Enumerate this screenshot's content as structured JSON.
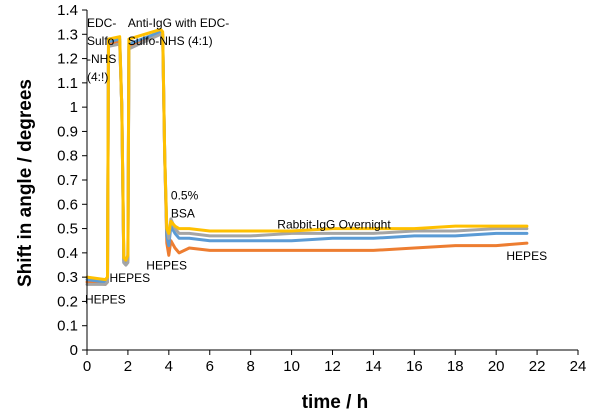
{
  "chart_data": {
    "type": "line",
    "title": "",
    "xlabel": "time / h",
    "ylabel": "Shift in angle / degrees",
    "xlim": [
      0,
      24
    ],
    "ylim": [
      0,
      1.4
    ],
    "xticks": [
      "0",
      "2",
      "4",
      "6",
      "8",
      "10",
      "12",
      "14",
      "16",
      "18",
      "20",
      "22",
      "24"
    ],
    "yticks": [
      "0",
      "0.1",
      "0.2",
      "0.3",
      "0.4",
      "0.5",
      "0.6",
      "0.7",
      "0.8",
      "0.9",
      "1",
      "1.1",
      "1.2",
      "1.3",
      "1.4"
    ],
    "grid": false,
    "legend": "none",
    "series": [
      {
        "color": "#ED7D31",
        "x": [
          0,
          0.9,
          1.0,
          1.05,
          1.6,
          1.7,
          1.8,
          1.9,
          2.0,
          2.05,
          3.6,
          3.7,
          3.8,
          3.9,
          4.0,
          4.1,
          4.3,
          4.5,
          5,
          6,
          8,
          10,
          12,
          14,
          16,
          18,
          20,
          21.5
        ],
        "y": [
          0.28,
          0.27,
          0.28,
          1.26,
          1.27,
          1.0,
          0.37,
          0.36,
          0.38,
          1.25,
          1.31,
          1.3,
          0.8,
          0.44,
          0.39,
          0.45,
          0.42,
          0.4,
          0.42,
          0.41,
          0.41,
          0.41,
          0.41,
          0.41,
          0.42,
          0.43,
          0.43,
          0.44
        ]
      },
      {
        "color": "#5B9BD5",
        "x": [
          0,
          0.9,
          1.0,
          1.05,
          1.6,
          1.7,
          1.8,
          1.9,
          2.0,
          2.05,
          3.6,
          3.7,
          3.8,
          3.9,
          4.0,
          4.1,
          4.3,
          4.5,
          5,
          6,
          8,
          10,
          12,
          14,
          16,
          18,
          20,
          21.5
        ],
        "y": [
          0.29,
          0.28,
          0.29,
          1.27,
          1.28,
          1.0,
          0.36,
          0.35,
          0.37,
          1.26,
          1.31,
          1.3,
          0.8,
          0.47,
          0.43,
          0.51,
          0.48,
          0.46,
          0.46,
          0.45,
          0.45,
          0.45,
          0.46,
          0.46,
          0.47,
          0.47,
          0.48,
          0.48
        ]
      },
      {
        "color": "#A5A5A5",
        "x": [
          0,
          0.9,
          1.0,
          1.05,
          1.6,
          1.7,
          1.8,
          1.9,
          2.0,
          2.05,
          3.6,
          3.7,
          3.8,
          3.9,
          4.0,
          4.1,
          4.3,
          4.5,
          5,
          6,
          8,
          10,
          12,
          14,
          16,
          18,
          20,
          21.5
        ],
        "y": [
          0.27,
          0.27,
          0.28,
          1.25,
          1.26,
          1.0,
          0.36,
          0.35,
          0.36,
          1.24,
          1.3,
          1.29,
          0.8,
          0.5,
          0.46,
          0.54,
          0.5,
          0.48,
          0.48,
          0.47,
          0.47,
          0.48,
          0.48,
          0.48,
          0.49,
          0.49,
          0.5,
          0.5
        ]
      },
      {
        "color": "#FFC000",
        "x": [
          0,
          0.9,
          1.0,
          1.05,
          1.6,
          1.7,
          1.8,
          1.9,
          2.0,
          2.05,
          3.6,
          3.7,
          3.8,
          3.9,
          4.0,
          4.1,
          4.3,
          4.5,
          5,
          6,
          8,
          10,
          12,
          14,
          16,
          18,
          20,
          21.5
        ],
        "y": [
          0.3,
          0.29,
          0.3,
          1.28,
          1.29,
          1.0,
          0.38,
          0.37,
          0.39,
          1.28,
          1.32,
          1.31,
          0.8,
          0.5,
          0.48,
          0.53,
          0.51,
          0.5,
          0.5,
          0.49,
          0.49,
          0.49,
          0.5,
          0.5,
          0.5,
          0.51,
          0.51,
          0.51
        ]
      }
    ],
    "annotations": [
      {
        "lines": [
          "EDC-",
          "Sulfo",
          "-NHS",
          "(4:!)"
        ],
        "x": 0.0,
        "y": 1.38
      },
      {
        "lines": [
          "Anti-IgG with EDC-",
          "Sulfo-NHS (4:1)"
        ],
        "x": 2.0,
        "y": 1.38
      },
      {
        "lines": [
          "HEPES"
        ],
        "x": -0.1,
        "y": 0.24
      },
      {
        "lines": [
          "HEPES"
        ],
        "x": 1.1,
        "y": 0.33
      },
      {
        "lines": [
          "HEPES"
        ],
        "x": 2.9,
        "y": 0.38
      },
      {
        "lines": [
          "0.5%",
          "BSA"
        ],
        "x": 4.1,
        "y": 0.67
      },
      {
        "lines": [
          "Rabbit-IgG Overnight"
        ],
        "x": 9.3,
        "y": 0.55
      },
      {
        "lines": [
          "HEPES"
        ],
        "x": 20.5,
        "y": 0.42
      }
    ]
  }
}
